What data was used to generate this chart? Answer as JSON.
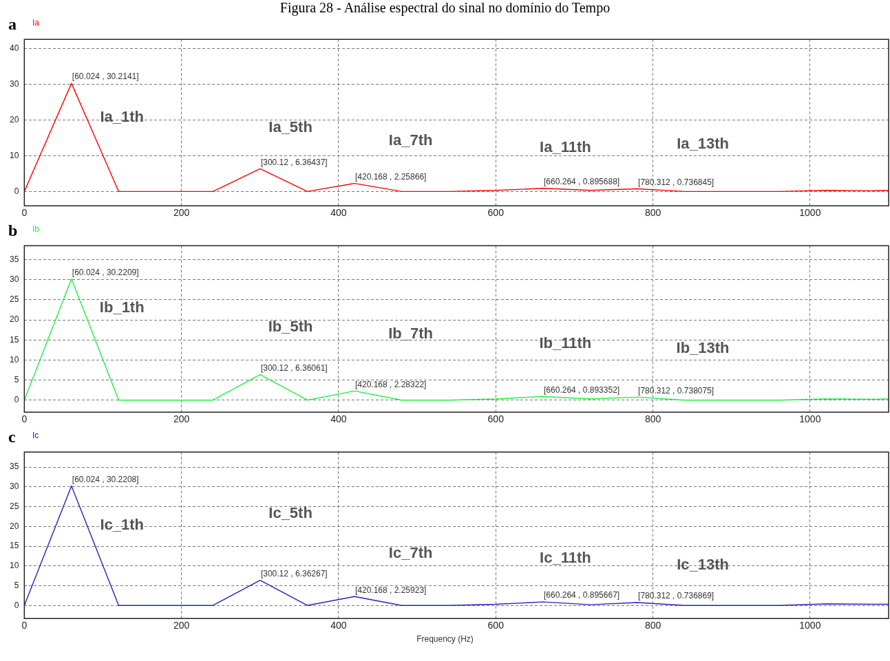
{
  "chart_data": [
    {
      "type": "line",
      "title": "Figura 28 - Análise espectral do sinal no domínio do Tempo",
      "x": [
        0,
        60.024,
        120.048,
        180.072,
        240.096,
        300.12,
        360.144,
        420.168,
        480.192,
        540.216,
        600.24,
        660.264,
        720.288,
        780.312,
        840.336,
        900.36,
        960.384,
        1020.408,
        1080.432,
        1100
      ],
      "series": [
        {
          "name": "Ia",
          "color": "#ff0000",
          "values": [
            0,
            30.2141,
            0,
            0,
            0,
            6.36437,
            0,
            2.25866,
            0,
            0,
            0.3,
            0.895688,
            0.3,
            0.736845,
            0,
            0,
            0,
            0.3,
            0.2,
            0.3
          ],
          "value_labels": [
            null,
            "[60.024 , 30.2141]",
            null,
            null,
            null,
            "[300.12 , 6.36437]",
            null,
            "[420.168 , 2.25866]",
            null,
            null,
            null,
            "[660.264 , 0.895688]",
            null,
            "[780.312 , 0.736845]",
            null,
            null,
            null,
            null,
            null,
            null
          ]
        }
      ],
      "xlim": [
        0,
        1100
      ],
      "xticks": [
        0,
        200,
        400,
        600,
        800,
        1000
      ],
      "ylim": [
        -4,
        42.5
      ],
      "yticks": [
        0,
        10,
        20,
        30,
        40
      ],
      "grid": true,
      "legend": "top left",
      "annotations": [
        "a",
        "Ia_1th",
        "Ia_5th",
        "Ia_7th",
        "Ia_11th",
        "Ia_13th"
      ]
    },
    {
      "type": "line",
      "x": [
        0,
        60.024,
        120.048,
        180.072,
        240.096,
        300.12,
        360.144,
        420.168,
        480.192,
        540.216,
        600.24,
        660.264,
        720.288,
        780.312,
        840.336,
        900.36,
        960.384,
        1020.408,
        1080.432,
        1100
      ],
      "series": [
        {
          "name": "Ib",
          "color": "#22ee44",
          "values": [
            0,
            30.2209,
            0,
            0,
            0,
            6.36061,
            0,
            2.28322,
            0,
            0,
            0.3,
            0.893352,
            0.3,
            0.738075,
            0,
            0,
            0,
            0.3,
            0.2,
            0.3
          ],
          "value_labels": [
            null,
            "[60.024 , 30.2209]",
            null,
            null,
            null,
            "[300.12 , 6.36061]",
            null,
            "[420.168 , 2.28322]",
            null,
            null,
            null,
            "[660.264 , 0.893352]",
            null,
            "[780.312 , 0.738075]",
            null,
            null,
            null,
            null,
            null,
            null
          ]
        }
      ],
      "xlim": [
        0,
        1100
      ],
      "xticks": [
        0,
        200,
        400,
        600,
        800,
        1000
      ],
      "ylim": [
        -3,
        38.5
      ],
      "yticks": [
        0,
        5,
        10,
        15,
        20,
        25,
        30,
        35
      ],
      "grid": true,
      "legend": "top left",
      "annotations": [
        "b",
        "Ib_1th",
        "Ib_5th",
        "Ib_7th",
        "Ib_11th",
        "Ib_13th"
      ]
    },
    {
      "type": "line",
      "xlabel": "Frequency (Hz)",
      "x": [
        0,
        60.024,
        120.048,
        180.072,
        240.096,
        300.12,
        360.144,
        420.168,
        480.192,
        540.216,
        600.24,
        660.264,
        720.288,
        780.312,
        840.336,
        900.36,
        960.384,
        1020.408,
        1080.432,
        1100
      ],
      "series": [
        {
          "name": "Ic",
          "color": "#2222bb",
          "values": [
            0,
            30.2208,
            0,
            0,
            0,
            6.36267,
            0,
            2.25923,
            0,
            0,
            0.3,
            0.895667,
            0.2,
            0.736869,
            0,
            0,
            0,
            0.4,
            0.3,
            0.3
          ],
          "value_labels": [
            null,
            "[60.024 , 30.2208]",
            null,
            null,
            null,
            "[300.12 , 6.36267]",
            null,
            "[420.168 , 2.25923]",
            null,
            null,
            null,
            "[660.264 , 0.895667]",
            null,
            "[780.312 , 0.736869]",
            null,
            null,
            null,
            null,
            null,
            null
          ]
        }
      ],
      "xlim": [
        0,
        1100
      ],
      "xticks": [
        0,
        200,
        400,
        600,
        800,
        1000
      ],
      "ylim": [
        -3.3,
        38.8
      ],
      "yticks": [
        0,
        5,
        10,
        15,
        20,
        25,
        30,
        35
      ],
      "grid": true,
      "legend": "top left",
      "annotations": [
        "c",
        "Ic_1th",
        "Ic_5th",
        "Ic_7th",
        "Ic_11th",
        "Ic_13th"
      ]
    }
  ]
}
